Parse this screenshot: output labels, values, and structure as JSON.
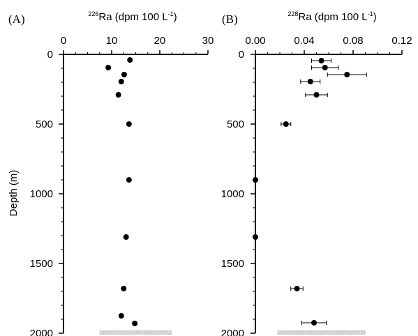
{
  "chart_data": [
    {
      "panel": "(A)",
      "type": "scatter",
      "xlabel_sup": "226",
      "xlabel_main": "Ra (dpm 100 L",
      "xlabel_exp": "-1",
      "xlabel_close": ")",
      "ylabel": "Depth (m)",
      "xlim": [
        0,
        30
      ],
      "ylim": [
        0,
        2000
      ],
      "y_inverted": true,
      "x_axis_position": "top",
      "xticks": [
        0,
        10,
        20,
        30
      ],
      "xtick_labels": [
        "0",
        "10",
        "20",
        "30"
      ],
      "yticks": [
        0,
        500,
        1000,
        1500,
        2000
      ],
      "ytick_labels": [
        "0",
        "500",
        "1000",
        "1500",
        "2000"
      ],
      "grid": false,
      "seafloor_bar": {
        "x_range": [
          7.5,
          22.5
        ],
        "depth": 2000
      },
      "points": [
        {
          "x": 13.8,
          "y": 40
        },
        {
          "x": 9.3,
          "y": 95
        },
        {
          "x": 12.6,
          "y": 145
        },
        {
          "x": 12.0,
          "y": 195
        },
        {
          "x": 11.4,
          "y": 290
        },
        {
          "x": 13.6,
          "y": 500
        },
        {
          "x": 13.6,
          "y": 900
        },
        {
          "x": 13.0,
          "y": 1310
        },
        {
          "x": 12.5,
          "y": 1680
        },
        {
          "x": 12.0,
          "y": 1875
        },
        {
          "x": 14.8,
          "y": 1930
        }
      ]
    },
    {
      "panel": "(B)",
      "type": "scatter",
      "xlabel_sup": "228",
      "xlabel_main": "Ra (dpm 100 L",
      "xlabel_exp": "-1",
      "xlabel_close": ")",
      "xlim": [
        0,
        0.12
      ],
      "ylim": [
        0,
        2000
      ],
      "y_inverted": true,
      "x_axis_position": "top",
      "xticks": [
        0,
        0.04,
        0.08,
        0.12
      ],
      "xtick_labels": [
        "0.00",
        "0.04",
        "0.08",
        "0.12"
      ],
      "yticks": [
        0,
        500,
        1000,
        1500,
        2000
      ],
      "ytick_labels": [
        "0",
        "500",
        "1000",
        "1500",
        "2000"
      ],
      "grid": false,
      "seafloor_bar": {
        "x_range": [
          0.018,
          0.09
        ],
        "depth": 2000
      },
      "points": [
        {
          "x": 0.054,
          "y": 45,
          "xerr": 0.008
        },
        {
          "x": 0.057,
          "y": 95,
          "xerr": 0.011
        },
        {
          "x": 0.075,
          "y": 145,
          "xerr": 0.016
        },
        {
          "x": 0.045,
          "y": 195,
          "xerr": 0.008
        },
        {
          "x": 0.05,
          "y": 290,
          "xerr": 0.009
        },
        {
          "x": 0.025,
          "y": 500,
          "xerr": 0.004
        },
        {
          "x": 0.0,
          "y": 900
        },
        {
          "x": 0.0,
          "y": 1310
        },
        {
          "x": 0.034,
          "y": 1680,
          "xerr": 0.005
        },
        {
          "x": 0.048,
          "y": 1925,
          "xerr": 0.01
        }
      ]
    }
  ]
}
